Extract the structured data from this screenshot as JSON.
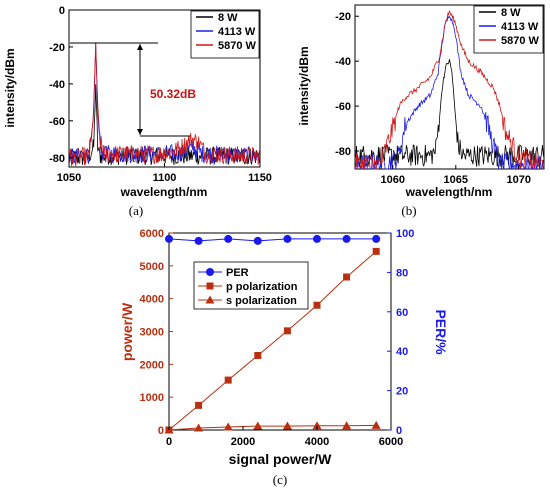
{
  "colors": {
    "w8": "#000000",
    "w4113": "#1f1fe0",
    "w5870": "#d01818",
    "per": "#1a1aee",
    "p_pol": "#b83010",
    "s_pol": "#b83010",
    "annot": "#cc1111"
  },
  "chart_data": [
    {
      "type": "line",
      "panel": "(a)",
      "xlabel": "wavelength/nm",
      "ylabel": "intensity/dBm",
      "xlim": [
        1050,
        1150
      ],
      "ylim": [
        -85,
        0
      ],
      "xticks": [
        1050,
        1100,
        1150
      ],
      "yticks": [
        0,
        -20,
        -40,
        -60,
        -80
      ],
      "legend_position": "top-right",
      "annotation": "50.32dB",
      "series": [
        {
          "name": "8 W",
          "x": [
            1050,
            1060,
            1063,
            1064,
            1065,
            1066,
            1070,
            1080,
            1100,
            1115,
            1120,
            1150
          ],
          "y": [
            -80,
            -80,
            -74,
            -40,
            -74,
            -79,
            -79,
            -79,
            -79,
            -79,
            -79,
            -79
          ]
        },
        {
          "name": "4113 W",
          "x": [
            1050,
            1060,
            1062,
            1063,
            1064,
            1065,
            1066,
            1068,
            1080,
            1100,
            1110,
            1115,
            1120,
            1150
          ],
          "y": [
            -80,
            -79,
            -70,
            -55,
            -18,
            -55,
            -70,
            -78,
            -78,
            -78,
            -77,
            -74,
            -78,
            -79
          ]
        },
        {
          "name": "5870 W",
          "x": [
            1050,
            1060,
            1062,
            1063,
            1064,
            1065,
            1066,
            1068,
            1080,
            1100,
            1108,
            1113,
            1115,
            1118,
            1122,
            1150
          ],
          "y": [
            -80,
            -79,
            -70,
            -50,
            -18,
            -50,
            -70,
            -78,
            -78,
            -78,
            -75,
            -71,
            -70,
            -72,
            -78,
            -79
          ]
        }
      ]
    },
    {
      "type": "line",
      "panel": "(b)",
      "xlabel": "wavelength/nm",
      "ylabel": "intensity/dBm",
      "xlim": [
        1057,
        1072
      ],
      "ylim": [
        -88,
        -15
      ],
      "xticks": [
        1060,
        1065,
        1070
      ],
      "yticks": [
        -20,
        -40,
        -60,
        -80
      ],
      "legend_position": "top-right",
      "series": [
        {
          "name": "8 W",
          "x": [
            1057,
            1063,
            1063.4,
            1063.7,
            1064,
            1064.3,
            1064.5,
            1064.7,
            1064.9,
            1065.2,
            1065.6,
            1072
          ],
          "y": [
            -82,
            -82,
            -80,
            -65,
            -48,
            -41,
            -40,
            -45,
            -60,
            -78,
            -82,
            -82
          ]
        },
        {
          "name": "4113 W",
          "x": [
            1057,
            1059.5,
            1060.5,
            1061,
            1062,
            1063,
            1063.6,
            1064.1,
            1064.5,
            1064.9,
            1065.4,
            1066,
            1067,
            1067.5,
            1068,
            1068.5,
            1072
          ],
          "y": [
            -86,
            -86,
            -82,
            -68,
            -60,
            -55,
            -45,
            -25,
            -19,
            -25,
            -45,
            -55,
            -60,
            -68,
            -78,
            -86,
            -86
          ]
        },
        {
          "name": "5870 W",
          "x": [
            1057,
            1059,
            1060,
            1060.5,
            1061,
            1062,
            1063,
            1063.7,
            1064.2,
            1064.5,
            1064.9,
            1065.5,
            1066,
            1067,
            1068,
            1068.5,
            1069,
            1070,
            1072
          ],
          "y": [
            -86,
            -86,
            -70,
            -60,
            -56,
            -52,
            -47,
            -38,
            -22,
            -18,
            -22,
            -34,
            -40,
            -45,
            -52,
            -60,
            -72,
            -83,
            -86
          ]
        }
      ]
    },
    {
      "type": "line",
      "panel": "(c)",
      "xlabel": "signal power/W",
      "ylabel": "power/W",
      "ylabel_right": "PER/%",
      "xlim": [
        0,
        6000
      ],
      "ylim": [
        0,
        6000
      ],
      "ylim_right": [
        0,
        100
      ],
      "xticks": [
        0,
        2000,
        4000,
        6000
      ],
      "yticks": [
        0,
        1000,
        2000,
        3000,
        4000,
        5000,
        6000
      ],
      "yticks_right": [
        0,
        20,
        40,
        60,
        80,
        100
      ],
      "legend_position": "top-left",
      "series": [
        {
          "name": "PER",
          "axis": "right",
          "marker": "circle",
          "x": [
            0,
            800,
            1600,
            2400,
            3200,
            4000,
            4800,
            5600
          ],
          "y": [
            97,
            96,
            97,
            96,
            97,
            97,
            97,
            97
          ]
        },
        {
          "name": "p polarization",
          "axis": "left",
          "marker": "square",
          "x": [
            0,
            800,
            1600,
            2400,
            3200,
            4000,
            4800,
            5600
          ],
          "y": [
            0,
            750,
            1520,
            2270,
            3020,
            3800,
            4660,
            5440
          ]
        },
        {
          "name": "s polarization",
          "axis": "left",
          "marker": "triangle",
          "x": [
            0,
            800,
            1600,
            2400,
            3200,
            4000,
            4800,
            5600
          ],
          "y": [
            0,
            60,
            90,
            120,
            120,
            130,
            130,
            140
          ]
        }
      ]
    }
  ]
}
